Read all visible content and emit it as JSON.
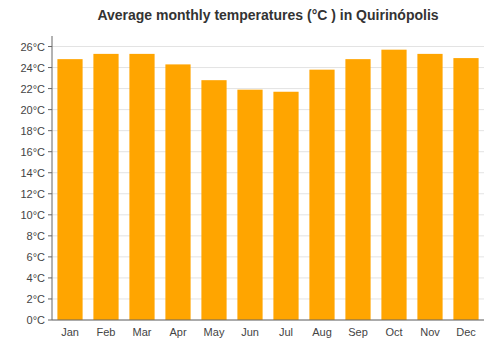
{
  "chart_data": {
    "type": "bar",
    "title": "Average monthly temperatures (°C ) in Quirinópolis",
    "categories": [
      "Jan",
      "Feb",
      "Mar",
      "Apr",
      "May",
      "Jun",
      "Jul",
      "Aug",
      "Sep",
      "Oct",
      "Nov",
      "Dec"
    ],
    "values": [
      24.8,
      25.3,
      25.3,
      24.3,
      22.8,
      21.9,
      21.7,
      23.8,
      24.8,
      25.7,
      25.3,
      24.9
    ],
    "color": "#FFA500",
    "ylim": [
      0,
      27
    ],
    "yticks": [
      {
        "value": 0,
        "label": "0°C"
      },
      {
        "value": 2,
        "label": "2°C"
      },
      {
        "value": 4,
        "label": "4°C"
      },
      {
        "value": 6,
        "label": "6°C"
      },
      {
        "value": 8,
        "label": "8°C"
      },
      {
        "value": 10,
        "label": "10°C"
      },
      {
        "value": 12,
        "label": "12°C"
      },
      {
        "value": 14,
        "label": "14°C"
      },
      {
        "value": 16,
        "label": "16°C"
      },
      {
        "value": 18,
        "label": "18°C"
      },
      {
        "value": 20,
        "label": "20°C"
      },
      {
        "value": 22,
        "label": "22°C"
      },
      {
        "value": 24,
        "label": "24°C"
      },
      {
        "value": 26,
        "label": "26°C"
      }
    ],
    "grid": true
  }
}
